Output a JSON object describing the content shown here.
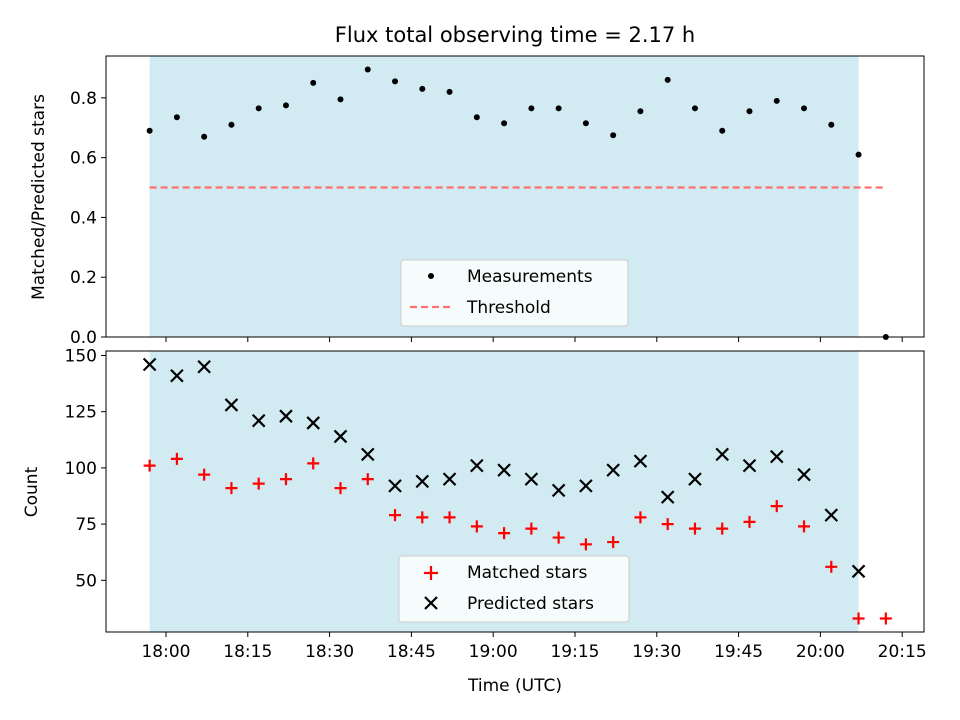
{
  "title": "Flux total observing time = 2.17 h",
  "chart_data": [
    {
      "type": "scatter",
      "ylabel": "Matched/Predicted stars",
      "ylim": [
        0,
        0.94
      ],
      "yticks": [
        "0.0",
        "0.2",
        "0.4",
        "0.6",
        "0.8"
      ],
      "xlim": [
        "17:49",
        "20:19"
      ],
      "x_tick_labels_shown": false,
      "shaded_span": {
        "x": [
          "17:57",
          "20:07"
        ],
        "color": "#add8e6"
      },
      "threshold": {
        "name": "Threshold",
        "value": 0.5,
        "x": [
          "17:57",
          "20:12"
        ],
        "color": "#ff7070",
        "style": "dashed"
      },
      "series": [
        {
          "name": "Measurements",
          "marker": "dot",
          "color": "#000000",
          "points": [
            [
              "17:57",
              0.69
            ],
            [
              "18:02",
              0.735
            ],
            [
              "18:07",
              0.67
            ],
            [
              "18:12",
              0.71
            ],
            [
              "18:17",
              0.765
            ],
            [
              "18:22",
              0.775
            ],
            [
              "18:27",
              0.85
            ],
            [
              "18:32",
              0.795
            ],
            [
              "18:37",
              0.895
            ],
            [
              "18:42",
              0.855
            ],
            [
              "18:47",
              0.83
            ],
            [
              "18:52",
              0.82
            ],
            [
              "18:57",
              0.735
            ],
            [
              "19:02",
              0.715
            ],
            [
              "19:07",
              0.765
            ],
            [
              "19:12",
              0.765
            ],
            [
              "19:17",
              0.715
            ],
            [
              "19:22",
              0.675
            ],
            [
              "19:27",
              0.755
            ],
            [
              "19:32",
              0.86
            ],
            [
              "19:37",
              0.765
            ],
            [
              "19:42",
              0.69
            ],
            [
              "19:47",
              0.755
            ],
            [
              "19:52",
              0.79
            ],
            [
              "19:57",
              0.765
            ],
            [
              "20:02",
              0.71
            ],
            [
              "20:07",
              0.61
            ],
            [
              "20:12",
              0.0
            ]
          ]
        }
      ],
      "legend": {
        "position": "lower center",
        "entries": [
          "Measurements",
          "Threshold"
        ]
      }
    },
    {
      "type": "scatter",
      "xlabel": "Time (UTC)",
      "ylabel": "Count",
      "ylim": [
        27,
        152
      ],
      "yticks": [
        "50",
        "75",
        "100",
        "125",
        "150"
      ],
      "xlim": [
        "17:49",
        "20:19"
      ],
      "xticks": [
        "18:00",
        "18:15",
        "18:30",
        "18:45",
        "19:00",
        "19:15",
        "19:30",
        "19:45",
        "20:00",
        "20:15"
      ],
      "shaded_span": {
        "x": [
          "17:57",
          "20:07"
        ],
        "color": "#add8e6"
      },
      "series": [
        {
          "name": "Matched stars",
          "marker": "plus",
          "color": "#ff0000",
          "points": [
            [
              "17:57",
              101
            ],
            [
              "18:02",
              104
            ],
            [
              "18:07",
              97
            ],
            [
              "18:12",
              91
            ],
            [
              "18:17",
              93
            ],
            [
              "18:22",
              95
            ],
            [
              "18:27",
              102
            ],
            [
              "18:32",
              91
            ],
            [
              "18:37",
              95
            ],
            [
              "18:42",
              79
            ],
            [
              "18:47",
              78
            ],
            [
              "18:52",
              78
            ],
            [
              "18:57",
              74
            ],
            [
              "19:02",
              71
            ],
            [
              "19:07",
              73
            ],
            [
              "19:12",
              69
            ],
            [
              "19:17",
              66
            ],
            [
              "19:22",
              67
            ],
            [
              "19:27",
              78
            ],
            [
              "19:32",
              75
            ],
            [
              "19:37",
              73
            ],
            [
              "19:42",
              73
            ],
            [
              "19:47",
              76
            ],
            [
              "19:52",
              83
            ],
            [
              "19:57",
              74
            ],
            [
              "20:02",
              56
            ],
            [
              "20:07",
              33
            ],
            [
              "20:12",
              33
            ]
          ]
        },
        {
          "name": "Predicted stars",
          "marker": "x",
          "color": "#000000",
          "points": [
            [
              "17:57",
              146
            ],
            [
              "18:02",
              141
            ],
            [
              "18:07",
              145
            ],
            [
              "18:12",
              128
            ],
            [
              "18:17",
              121
            ],
            [
              "18:22",
              123
            ],
            [
              "18:27",
              120
            ],
            [
              "18:32",
              114
            ],
            [
              "18:37",
              106
            ],
            [
              "18:42",
              92
            ],
            [
              "18:47",
              94
            ],
            [
              "18:52",
              95
            ],
            [
              "18:57",
              101
            ],
            [
              "19:02",
              99
            ],
            [
              "19:07",
              95
            ],
            [
              "19:12",
              90
            ],
            [
              "19:17",
              92
            ],
            [
              "19:22",
              99
            ],
            [
              "19:27",
              103
            ],
            [
              "19:32",
              87
            ],
            [
              "19:37",
              95
            ],
            [
              "19:42",
              106
            ],
            [
              "19:47",
              101
            ],
            [
              "19:52",
              105
            ],
            [
              "19:57",
              97
            ],
            [
              "20:02",
              79
            ],
            [
              "20:07",
              54
            ]
          ]
        }
      ],
      "legend": {
        "position": "lower center",
        "entries": [
          "Matched stars",
          "Predicted stars"
        ]
      }
    }
  ]
}
